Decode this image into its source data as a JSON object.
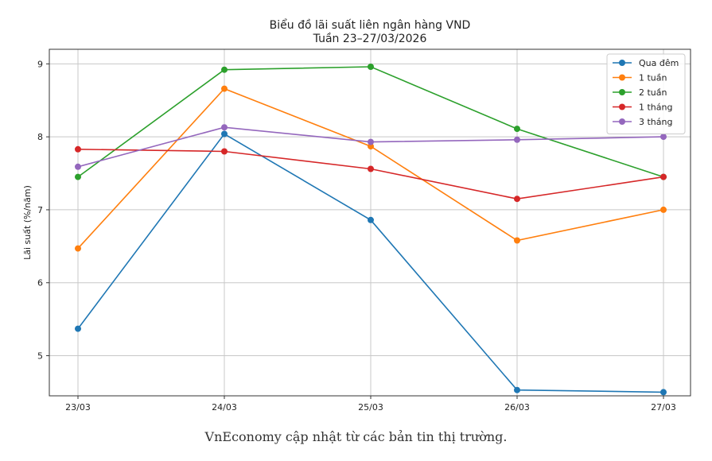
{
  "chart_data": {
    "type": "line",
    "title": "Biểu đồ lãi suất liên ngân hàng VND",
    "subtitle": "Tuần 23–27/03/2026",
    "xlabel": "",
    "ylabel": "Lãi suất (%/năm)",
    "categories": [
      "23/03",
      "24/03",
      "25/03",
      "26/03",
      "27/03"
    ],
    "ylim": [
      4.45,
      9.2
    ],
    "yticks": [
      5,
      6,
      7,
      8,
      9
    ],
    "grid": true,
    "legend_position": "top-right",
    "series": [
      {
        "name": "Qua đêm",
        "color": "#1f77b4",
        "values": [
          5.37,
          8.04,
          6.86,
          4.53,
          4.5
        ]
      },
      {
        "name": "1 tuần",
        "color": "#ff7f0e",
        "values": [
          6.47,
          8.66,
          7.87,
          6.58,
          7.0
        ]
      },
      {
        "name": "2 tuần",
        "color": "#2ca02c",
        "values": [
          7.45,
          8.92,
          8.96,
          8.11,
          7.45
        ]
      },
      {
        "name": "1 tháng",
        "color": "#d62728",
        "values": [
          7.83,
          7.8,
          7.56,
          7.15,
          7.45
        ]
      },
      {
        "name": "3 tháng",
        "color": "#9467bd",
        "values": [
          7.59,
          8.13,
          7.93,
          7.96,
          8.0
        ]
      }
    ]
  },
  "caption": "VnEconomy cập nhật từ các bản tin thị trường."
}
